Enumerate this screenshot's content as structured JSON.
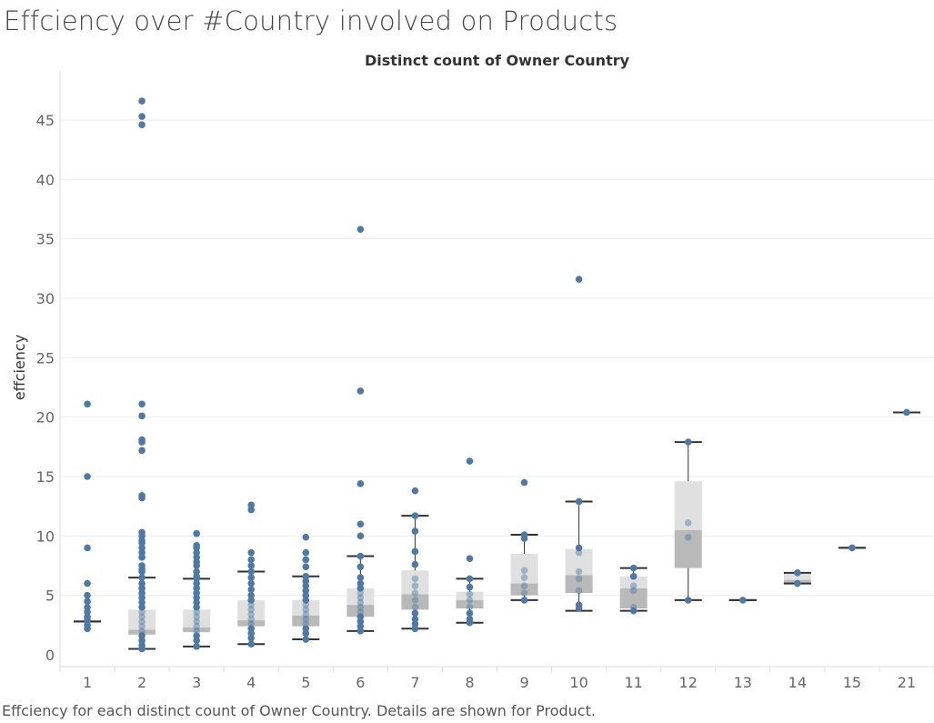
{
  "title": "Effciency over #Country involved on Products",
  "caption": "Effciency for each distinct count of Owner Country.  Details are shown for Product.",
  "colors": {
    "point": "#4e79a7",
    "box_upper": "#e0e0e0",
    "box_lower": "#b9b9b9",
    "whisker": "#333333",
    "grid": "#eeeeee"
  },
  "chart_data": {
    "type": "box",
    "title": "Distinct count of Owner Country",
    "xlabel": "Distinct count of Owner Country",
    "ylabel": "effciency",
    "ylim": [
      0,
      48
    ],
    "yticks": [
      0,
      5,
      10,
      15,
      20,
      25,
      30,
      35,
      40,
      45
    ],
    "categories": [
      "1",
      "2",
      "3",
      "4",
      "5",
      "6",
      "7",
      "8",
      "9",
      "10",
      "11",
      "12",
      "13",
      "14",
      "15",
      "21"
    ],
    "grid": true,
    "boxes": [
      {
        "category": "1",
        "whisker_low": 2.8,
        "q1": 2.8,
        "median": 2.8,
        "q3": 2.8,
        "whisker_high": 2.8,
        "points": [
          21.1,
          15.0,
          9.0,
          6.0,
          5.0,
          4.5,
          4.0,
          3.6,
          3.2,
          2.9,
          2.5,
          2.2
        ]
      },
      {
        "category": "2",
        "whisker_low": 0.5,
        "q1": 1.7,
        "median": 2.1,
        "q3": 3.8,
        "whisker_high": 6.5,
        "points": [
          46.6,
          45.3,
          44.6,
          21.1,
          20.1,
          18.1,
          17.9,
          17.2,
          13.4,
          13.2,
          10.3,
          10.0,
          9.6,
          9.4,
          9.0,
          8.6,
          8.2,
          7.5,
          7.2,
          7.0,
          6.5,
          6.0,
          5.6,
          5.2,
          4.8,
          4.4,
          4.0,
          3.6,
          3.2,
          2.8,
          2.4,
          2.0,
          1.6,
          1.2,
          0.8,
          0.5
        ]
      },
      {
        "category": "3",
        "whisker_low": 0.7,
        "q1": 1.9,
        "median": 2.3,
        "q3": 3.8,
        "whisker_high": 6.4,
        "points": [
          10.2,
          10.2,
          9.2,
          9.0,
          8.6,
          8.2,
          7.8,
          7.5,
          7.0,
          6.6,
          6.4,
          6.0,
          5.6,
          5.2,
          4.8,
          4.4,
          4.0,
          3.6,
          3.2,
          2.8,
          2.4,
          2.0,
          1.6,
          1.2,
          0.7
        ]
      },
      {
        "category": "4",
        "whisker_low": 0.9,
        "q1": 2.4,
        "median": 2.9,
        "q3": 4.6,
        "whisker_high": 7.0,
        "points": [
          12.6,
          12.2,
          8.6,
          8.0,
          7.5,
          7.0,
          6.5,
          6.0,
          5.5,
          5.0,
          4.6,
          4.2,
          3.8,
          3.4,
          3.0,
          2.6,
          2.2,
          1.8,
          1.4,
          0.9
        ]
      },
      {
        "category": "5",
        "whisker_low": 1.3,
        "q1": 2.4,
        "median": 3.3,
        "q3": 4.6,
        "whisker_high": 6.6,
        "points": [
          9.9,
          8.6,
          8.0,
          7.4,
          6.6,
          6.2,
          5.8,
          5.4,
          5.0,
          4.6,
          4.2,
          3.8,
          3.4,
          3.0,
          2.6,
          2.2,
          1.8,
          1.3
        ]
      },
      {
        "category": "6",
        "whisker_low": 2.0,
        "q1": 3.2,
        "median": 4.2,
        "q3": 5.6,
        "whisker_high": 8.3,
        "points": [
          35.8,
          22.2,
          14.4,
          11.0,
          10.0,
          8.3,
          7.4,
          6.5,
          6.0,
          5.6,
          5.2,
          4.8,
          4.4,
          4.0,
          3.6,
          3.2,
          2.8,
          2.4,
          2.0
        ]
      },
      {
        "category": "7",
        "whisker_low": 2.2,
        "q1": 3.8,
        "median": 5.1,
        "q3": 7.1,
        "whisker_high": 11.7,
        "points": [
          13.8,
          11.7,
          10.4,
          8.7,
          7.6,
          6.4,
          5.8,
          5.2,
          4.6,
          4.0,
          3.5,
          3.0,
          2.6,
          2.2
        ]
      },
      {
        "category": "8",
        "whisker_low": 2.7,
        "q1": 3.9,
        "median": 4.6,
        "q3": 5.3,
        "whisker_high": 6.4,
        "points": [
          16.3,
          8.1,
          6.4,
          5.7,
          5.1,
          4.6,
          4.0,
          3.5,
          3.0,
          2.7
        ]
      },
      {
        "category": "9",
        "whisker_low": 4.6,
        "q1": 5.0,
        "median": 6.0,
        "q3": 8.5,
        "whisker_high": 10.1,
        "points": [
          14.5,
          10.1,
          9.8,
          7.1,
          6.5,
          5.8,
          5.2,
          4.6
        ]
      },
      {
        "category": "10",
        "whisker_low": 3.7,
        "q1": 5.2,
        "median": 6.7,
        "q3": 8.9,
        "whisker_high": 12.9,
        "points": [
          31.6,
          12.9,
          9.0,
          8.6,
          7.0,
          6.4,
          5.4,
          4.2,
          3.9
        ]
      },
      {
        "category": "11",
        "whisker_low": 3.7,
        "q1": 3.9,
        "median": 5.6,
        "q3": 6.6,
        "whisker_high": 7.3,
        "points": [
          7.3,
          6.6,
          5.8,
          5.4,
          4.0,
          3.7
        ]
      },
      {
        "category": "12",
        "whisker_low": 4.6,
        "q1": 7.3,
        "median": 10.5,
        "q3": 14.6,
        "whisker_high": 17.9,
        "points": [
          17.9,
          11.1,
          9.9,
          4.6
        ]
      },
      {
        "category": "13",
        "whisker_low": 4.6,
        "q1": 4.6,
        "median": 4.6,
        "q3": 4.6,
        "whisker_high": 4.6,
        "points": [
          4.6
        ]
      },
      {
        "category": "14",
        "whisker_low": 6.0,
        "q1": 6.0,
        "median": 6.3,
        "q3": 6.9,
        "whisker_high": 6.9,
        "points": [
          6.9,
          6.0
        ]
      },
      {
        "category": "15",
        "whisker_low": 9.0,
        "q1": 9.0,
        "median": 9.0,
        "q3": 9.0,
        "whisker_high": 9.0,
        "points": [
          9.0
        ]
      },
      {
        "category": "21",
        "whisker_low": 20.4,
        "q1": 20.4,
        "median": 20.4,
        "q3": 20.4,
        "whisker_high": 20.4,
        "points": [
          20.4
        ]
      }
    ]
  }
}
